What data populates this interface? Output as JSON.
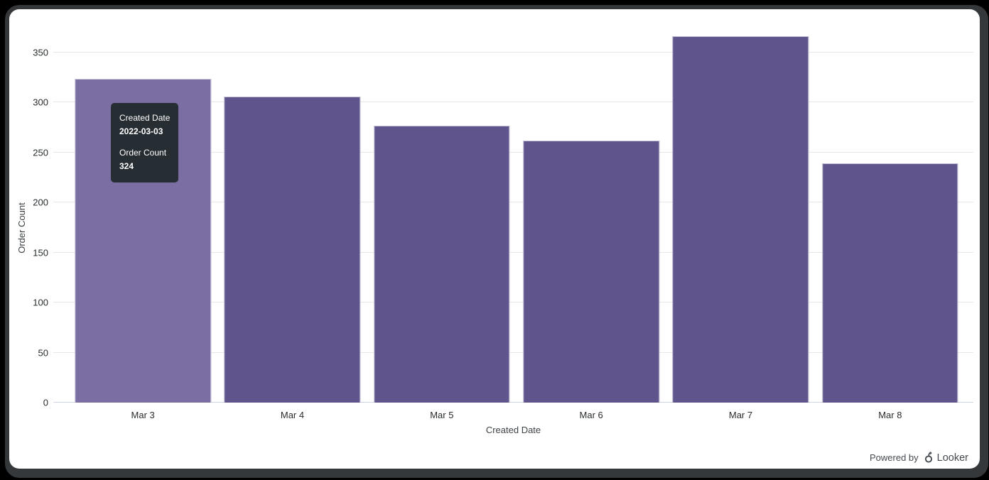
{
  "frame": {
    "background": "#000000",
    "border_color": "#34383b",
    "card_background": "#ffffff"
  },
  "chart_data": {
    "type": "bar",
    "title": "",
    "categories": [
      "Mar 3",
      "Mar 4",
      "Mar 5",
      "Mar 6",
      "Mar 7",
      "Mar 8"
    ],
    "values": [
      324,
      306,
      277,
      262,
      366,
      239
    ],
    "xlabel": "Created Date",
    "ylabel": "Order Count",
    "ylim": [
      0,
      350
    ],
    "yticks": [
      0,
      50,
      100,
      150,
      200,
      250,
      300,
      350
    ],
    "grid": "horizontal",
    "legend": "none",
    "bar_color": "#5f548c",
    "hover_bar_color": "#7a6ea3",
    "hovered_index": 0,
    "gridline_color": "#e7e7e7",
    "baseline_color": "#ccd3e8",
    "tick_label_color": "#282c2e"
  },
  "tooltip": {
    "dimension_label": "Created Date",
    "dimension_value": "2022-03-03",
    "measure_label": "Order Count",
    "measure_value": "324",
    "background": "#262d33",
    "text_color": "#ffffff"
  },
  "branding": {
    "powered_by": "Powered by",
    "brand": "Looker",
    "color": "#454b50"
  }
}
